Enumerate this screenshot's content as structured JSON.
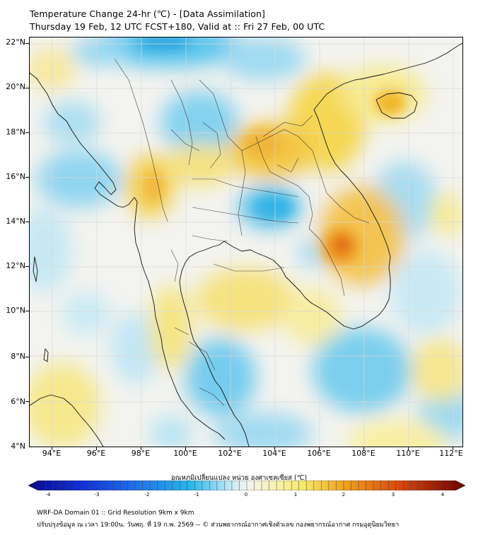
{
  "title": {
    "line1": "Temperature Change 24-hr (℃) - [Data Assimilation]",
    "line2": "Thursday 19 Feb, 12 UTC FCST+180, Valid at :: Fri 27 Feb, 00 UTC"
  },
  "axes": {
    "lat_labels": [
      "22°N",
      "20°N",
      "18°N",
      "16°N",
      "14°N",
      "12°N",
      "10°N",
      "8°N",
      "6°N",
      "4°N"
    ],
    "lon_labels": [
      "94°E",
      "96°E",
      "98°E",
      "100°E",
      "102°E",
      "104°E",
      "106°E",
      "108°E",
      "110°E",
      "112°E"
    ],
    "lat_range": [
      4,
      22.2
    ],
    "lon_range": [
      93,
      112.3
    ]
  },
  "colorbar": {
    "title": "อุณหภูมิเปลี่ยนแปลง หน่วย องศาเซลเซียส (℃)",
    "min": -4,
    "max": 4,
    "tick_labels": [
      "-4",
      "-3",
      "-2",
      "-1",
      "0",
      "1",
      "2",
      "3",
      "4"
    ]
  },
  "footer": {
    "line1": "WRF-DA Domain 01 :: Grid Resolution 9km x 9km",
    "line2": "ปรับปรุงข้อมูล ณ เวลา 19:00น. วันพฤ. ที่ 19 ก.พ. 2569 -- © ส่วนพยากรณ์อากาศเชิงตัวเลข กองพยากรณ์อากาศ กรมอุตุนิยมวิทยา"
  },
  "colors": {
    "cold_max": "#0a0a8c",
    "cold_mid": "#27b6ea",
    "neutral": "#f2f2ee",
    "warm_light": "#f5e96a",
    "warm_mid": "#f0a51e",
    "hot": "#d9480f",
    "hot_max": "#6b0000",
    "land_border": "#111111",
    "grid": "#dcdcdc"
  }
}
